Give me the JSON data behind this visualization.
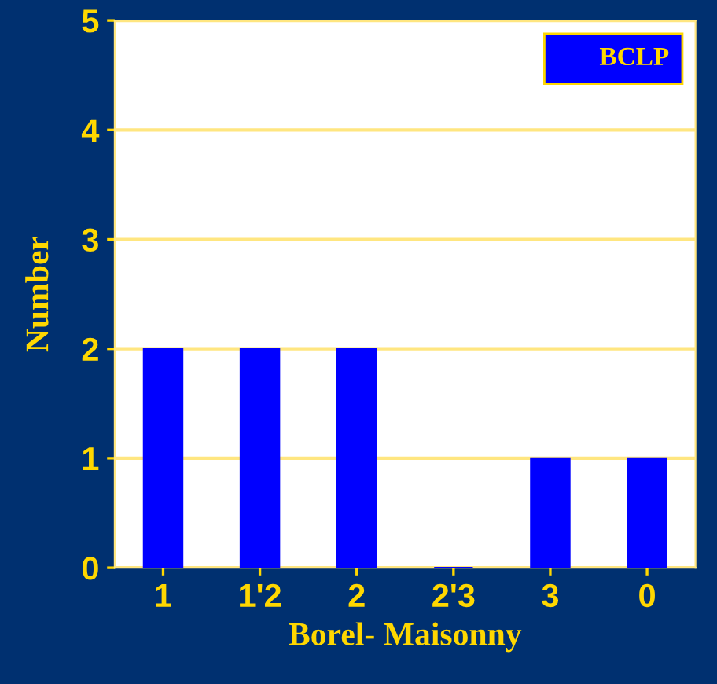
{
  "chart_data": {
    "type": "bar",
    "xlabel": "Borel- Maisonny",
    "ylabel": "Number",
    "categories": [
      "1",
      "1'2",
      "2",
      "2'3",
      "3",
      "0"
    ],
    "series": [
      {
        "name": "BCLP",
        "color": "#0000ff",
        "values": [
          2,
          2,
          2,
          0,
          1,
          1
        ]
      }
    ],
    "ylim": [
      0,
      5
    ],
    "yticks": [
      0,
      1,
      2,
      3,
      4,
      5
    ],
    "grid": "y",
    "legend": "top right"
  }
}
